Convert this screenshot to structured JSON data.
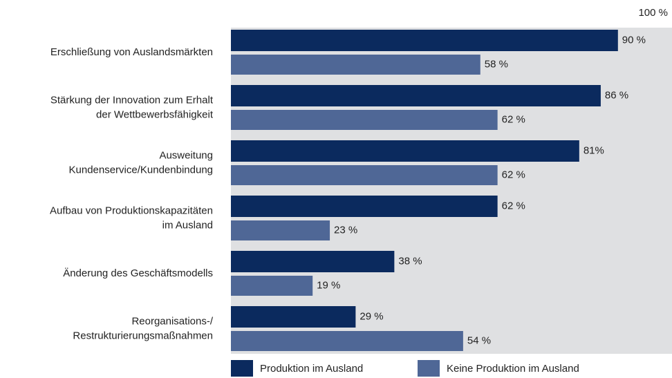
{
  "chart_data": {
    "type": "bar",
    "orientation": "horizontal",
    "categories": [
      [
        "Erschließung von Auslandsmärkten"
      ],
      [
        "Stärkung der Innovation zum Erhalt",
        "der Wettbewerbsfähigkeit"
      ],
      [
        "Ausweitung",
        "Kundenservice/Kundenbindung"
      ],
      [
        "Aufbau von Produktionskapazitäten",
        "im Ausland"
      ],
      [
        "Änderung des Geschäftsmodells"
      ],
      [
        "Reorganisations-/",
        "Restrukturierungsmaßnahmen"
      ]
    ],
    "series": [
      {
        "name": "Produktion im Ausland",
        "color": "#0b2a5e",
        "values": [
          90,
          86,
          81,
          62,
          38,
          29
        ],
        "value_labels": [
          "90 %",
          "86 %",
          "81%",
          "62 %",
          "38 %",
          "29 %"
        ]
      },
      {
        "name": "Keine Produktion im Ausland",
        "color": "#4f6796",
        "values": [
          58,
          62,
          62,
          23,
          19,
          54
        ],
        "value_labels": [
          "58 %",
          "62 %",
          "62 %",
          "23 %",
          "19 %",
          "54 %"
        ]
      }
    ],
    "xlim": [
      0,
      100
    ],
    "xticks": [
      {
        "value": 100,
        "label": "100 %"
      }
    ],
    "background": "#dfe0e2"
  }
}
